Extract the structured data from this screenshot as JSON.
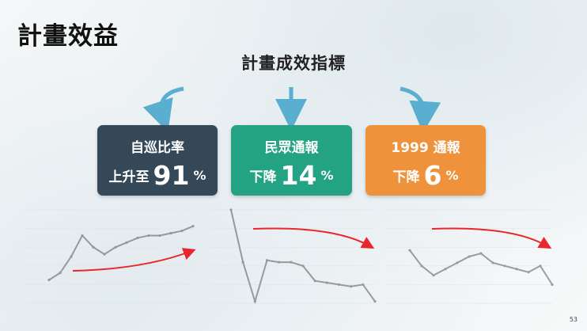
{
  "slide": {
    "title": "計畫效益",
    "subtitle": "計畫成效指標",
    "page_number": "53"
  },
  "cards": [
    {
      "title": "自巡比率",
      "prefix": "上升至",
      "value": "91",
      "unit": "%",
      "color": "#354857"
    },
    {
      "title": "民眾通報",
      "prefix": "下降",
      "value": "14",
      "unit": "%",
      "color": "#23a383"
    },
    {
      "title": "1999 通報",
      "prefix": "下降",
      "value": "6",
      "unit": "%",
      "color": "#ee923c"
    }
  ],
  "colors": {
    "arrow": "#5aaed0",
    "trend_arrow": "#e8262b",
    "line": "#555555"
  },
  "chart_data": [
    {
      "type": "line",
      "trend": "up",
      "values": [
        60,
        63,
        70,
        79,
        74,
        71,
        74,
        76,
        78,
        79,
        79,
        80,
        81,
        83
      ],
      "ylim": [
        50,
        90
      ]
    },
    {
      "type": "line",
      "trend": "down",
      "values": [
        100,
        72,
        51,
        73,
        72,
        72,
        70,
        62,
        61,
        60,
        59,
        60,
        51
      ],
      "ylim": [
        50,
        100
      ]
    },
    {
      "type": "line",
      "trend": "down",
      "values": [
        62,
        57,
        54,
        56,
        58,
        60,
        61,
        58,
        57,
        56,
        55,
        57,
        51
      ],
      "ylim": [
        45,
        75
      ]
    }
  ]
}
